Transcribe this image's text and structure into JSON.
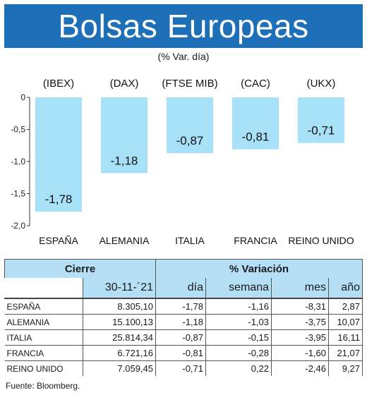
{
  "header": {
    "title": "Bolsas Europeas",
    "subtitle": "(% Var. día)"
  },
  "chart_data": {
    "type": "bar",
    "indices": [
      "(IBEX)",
      "(DAX)",
      "(FTSE MIB)",
      "(CAC)",
      "(UKX)"
    ],
    "categories": [
      "ESPAÑA",
      "ALEMANIA",
      "ITALIA",
      "FRANCIA",
      "REINO UNIDO"
    ],
    "values": [
      -1.78,
      -1.18,
      -0.87,
      -0.81,
      -0.71
    ],
    "value_labels": [
      "-1,78",
      "-1,18",
      "-0,87",
      "-0,81",
      "-0,71"
    ],
    "yticks": [
      "0",
      "-0,5",
      "-1,0",
      "-1,5",
      "-2,0"
    ],
    "ytick_values": [
      0,
      -0.5,
      -1.0,
      -1.5,
      -2.0
    ],
    "ylim": [
      -2.0,
      0
    ],
    "bar_color": "#a6e1f7",
    "grid": false
  },
  "table": {
    "group_headers": [
      "Cierre",
      "% Variación"
    ],
    "columns": [
      "30-11-´21",
      "día",
      "semana",
      "mes",
      "año"
    ],
    "rows": [
      [
        "ESPAÑA",
        "8.305,10",
        "-1,78",
        "-1,16",
        "-8,31",
        "2,87"
      ],
      [
        "ALEMANIA",
        "15.100,13",
        "-1,18",
        "-1,03",
        "-3,75",
        "10,07"
      ],
      [
        "ITALIA",
        "25.814,34",
        "-0,87",
        "-0,15",
        "-3,95",
        "16,11"
      ],
      [
        "FRANCIA",
        "6.721,16",
        "-0,81",
        "-0,28",
        "-1,60",
        "21,07"
      ],
      [
        "REINO UNIDO",
        "7.059,45",
        "-0,71",
        "0,22",
        "-2,46",
        "9,27"
      ]
    ]
  },
  "footer": {
    "source": "Fuente: Bloomberg."
  },
  "colors": {
    "title_bg": "#1d6fb8",
    "header_bg": "#b4dff5",
    "bar": "#a6e1f7"
  }
}
